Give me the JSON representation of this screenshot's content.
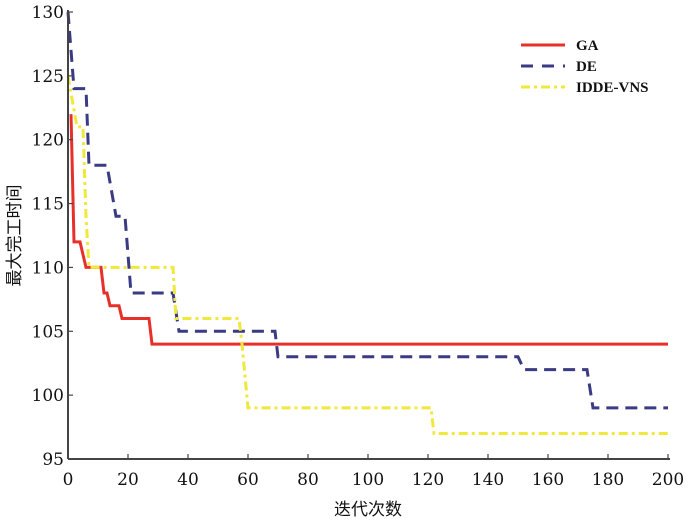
{
  "chart_data": {
    "type": "line",
    "title": "",
    "xlabel": "迭代次数",
    "ylabel": "最大完工时间",
    "xlim": [
      0,
      200
    ],
    "ylim": [
      95,
      130
    ],
    "xticks": [
      0,
      20,
      40,
      60,
      80,
      100,
      120,
      140,
      160,
      180,
      200
    ],
    "yticks": [
      95,
      100,
      105,
      110,
      115,
      120,
      125,
      130
    ],
    "grid": false,
    "legend_position": "top-right",
    "series": [
      {
        "name": "GA",
        "color": "#e8302a",
        "style": "solid",
        "points": [
          [
            1,
            122
          ],
          [
            2,
            112
          ],
          [
            4,
            112
          ],
          [
            6,
            110
          ],
          [
            11,
            110
          ],
          [
            12,
            108
          ],
          [
            13,
            108
          ],
          [
            14,
            107
          ],
          [
            17,
            107
          ],
          [
            18,
            106
          ],
          [
            27,
            106
          ],
          [
            28,
            104
          ],
          [
            200,
            104
          ]
        ]
      },
      {
        "name": "DE",
        "color": "#3a3a85",
        "style": "dashed",
        "points": [
          [
            0,
            130
          ],
          [
            2,
            124
          ],
          [
            6,
            124
          ],
          [
            7,
            118
          ],
          [
            13,
            118
          ],
          [
            16,
            114
          ],
          [
            19,
            114
          ],
          [
            21,
            108
          ],
          [
            35,
            108
          ],
          [
            37,
            105
          ],
          [
            69,
            105
          ],
          [
            70,
            103
          ],
          [
            150,
            103
          ],
          [
            152,
            102
          ],
          [
            173,
            102
          ],
          [
            175,
            99
          ],
          [
            200,
            99
          ]
        ]
      },
      {
        "name": "IDDE-VNS",
        "color": "#f0e83a",
        "style": "dashdot",
        "points": [
          [
            0,
            125
          ],
          [
            3,
            121
          ],
          [
            5,
            121
          ],
          [
            6,
            114
          ],
          [
            7,
            110
          ],
          [
            35,
            110
          ],
          [
            36,
            106
          ],
          [
            57,
            106
          ],
          [
            58,
            104
          ],
          [
            60,
            99
          ],
          [
            121,
            99
          ],
          [
            122,
            97
          ],
          [
            200,
            97
          ]
        ]
      }
    ]
  }
}
